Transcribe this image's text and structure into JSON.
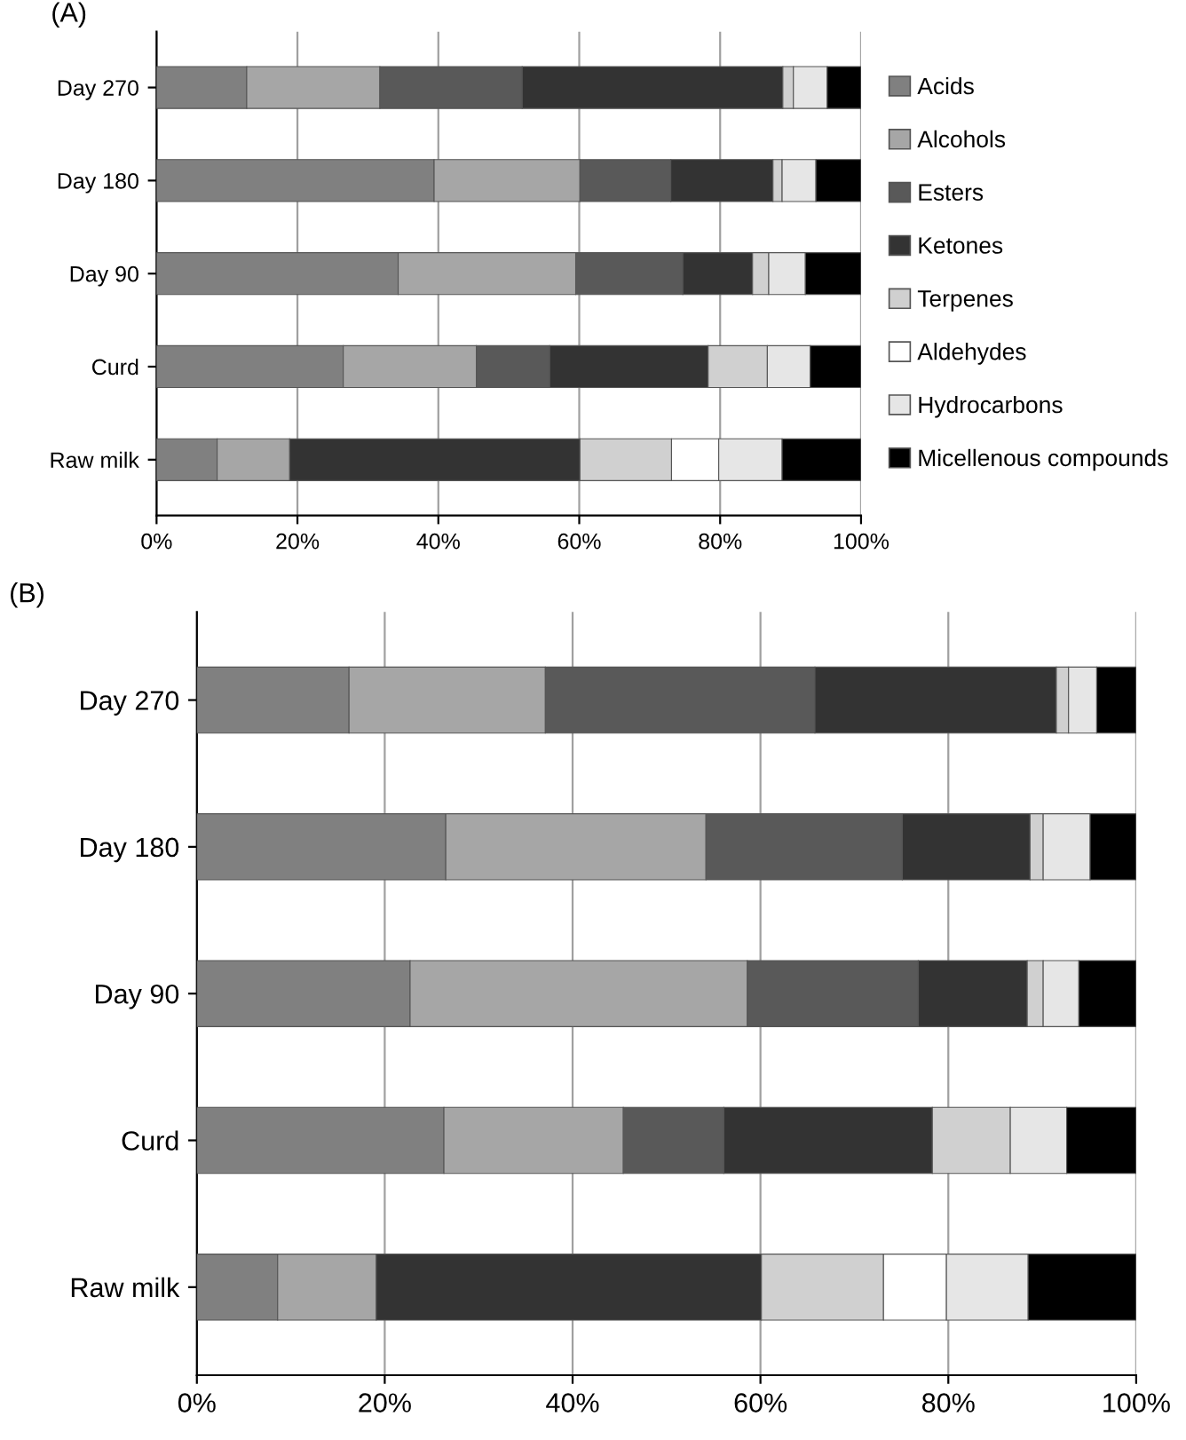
{
  "chart_data": [
    {
      "type": "bar",
      "title": "(A)",
      "orientation": "horizontal",
      "stacked": true,
      "grid": "x",
      "legend": "right",
      "categories": [
        "Day 270",
        "Day 180",
        "Day 90",
        "Curd",
        "Raw milk"
      ],
      "xlim": [
        0,
        100
      ],
      "xticks": [
        {
          "value": 0,
          "label": "0%"
        },
        {
          "value": 20,
          "label": "20%"
        },
        {
          "value": 40,
          "label": "40%"
        },
        {
          "value": 60,
          "label": "60%"
        },
        {
          "value": 80,
          "label": "80%"
        },
        {
          "value": 100,
          "label": "100%"
        }
      ],
      "series": [
        {
          "name": "Acids",
          "color": "#808080",
          "values": [
            12.8,
            39.4,
            34.3,
            26.5,
            8.6
          ]
        },
        {
          "name": "Alcohols",
          "color": "#a6a6a6",
          "values": [
            18.9,
            20.7,
            25.2,
            18.9,
            10.3
          ]
        },
        {
          "name": "Esters",
          "color": "#595959",
          "values": [
            20.2,
            12.9,
            15.2,
            10.4,
            null
          ]
        },
        {
          "name": "Ketones",
          "color": "#333333",
          "values": [
            37.0,
            14.5,
            9.9,
            22.5,
            41.2
          ]
        },
        {
          "name": "Terpenes",
          "color": "#d0d0d0",
          "values": [
            1.5,
            1.3,
            2.3,
            8.4,
            13.0
          ]
        },
        {
          "name": "Aldehydes",
          "color": "#ffffff",
          "values": [
            null,
            null,
            null,
            null,
            6.7
          ]
        },
        {
          "name": "Hydrocarbons",
          "color": "#e6e6e6",
          "values": [
            4.8,
            4.8,
            5.2,
            6.1,
            9.0
          ]
        },
        {
          "name": "Micellenous compounds",
          "color": "#000000",
          "values": [
            4.8,
            6.4,
            7.9,
            7.2,
            11.2
          ]
        }
      ]
    },
    {
      "type": "bar",
      "title": "(B)",
      "orientation": "horizontal",
      "stacked": true,
      "grid": "x",
      "categories": [
        "Day 270",
        "Day 180",
        "Day 90",
        "Curd",
        "Raw milk"
      ],
      "xlim": [
        0,
        100
      ],
      "xticks": [
        {
          "value": 0,
          "label": "0%"
        },
        {
          "value": 20,
          "label": "20%"
        },
        {
          "value": 40,
          "label": "40%"
        },
        {
          "value": 60,
          "label": "60%"
        },
        {
          "value": 80,
          "label": "80%"
        },
        {
          "value": 100,
          "label": "100%"
        }
      ],
      "series": [
        {
          "color": "#808080",
          "values": [
            16.2,
            26.5,
            22.7,
            26.3,
            8.6
          ]
        },
        {
          "color": "#a6a6a6",
          "values": [
            20.9,
            27.7,
            35.9,
            19.1,
            10.5
          ]
        },
        {
          "color": "#595959",
          "values": [
            28.7,
            20.9,
            18.2,
            10.7,
            null
          ]
        },
        {
          "color": "#333333",
          "values": [
            25.7,
            13.6,
            11.6,
            22.2,
            41.0
          ]
        },
        {
          "color": "#d0d0d0",
          "values": [
            1.3,
            1.4,
            1.7,
            8.3,
            13.0
          ]
        },
        {
          "color": "#ffffff",
          "values": [
            null,
            null,
            null,
            null,
            6.7
          ]
        },
        {
          "color": "#e6e6e6",
          "values": [
            3.0,
            5.0,
            3.8,
            6.0,
            8.7
          ]
        },
        {
          "color": "#000000",
          "values": [
            4.2,
            4.9,
            6.1,
            7.4,
            11.5
          ]
        }
      ]
    }
  ]
}
